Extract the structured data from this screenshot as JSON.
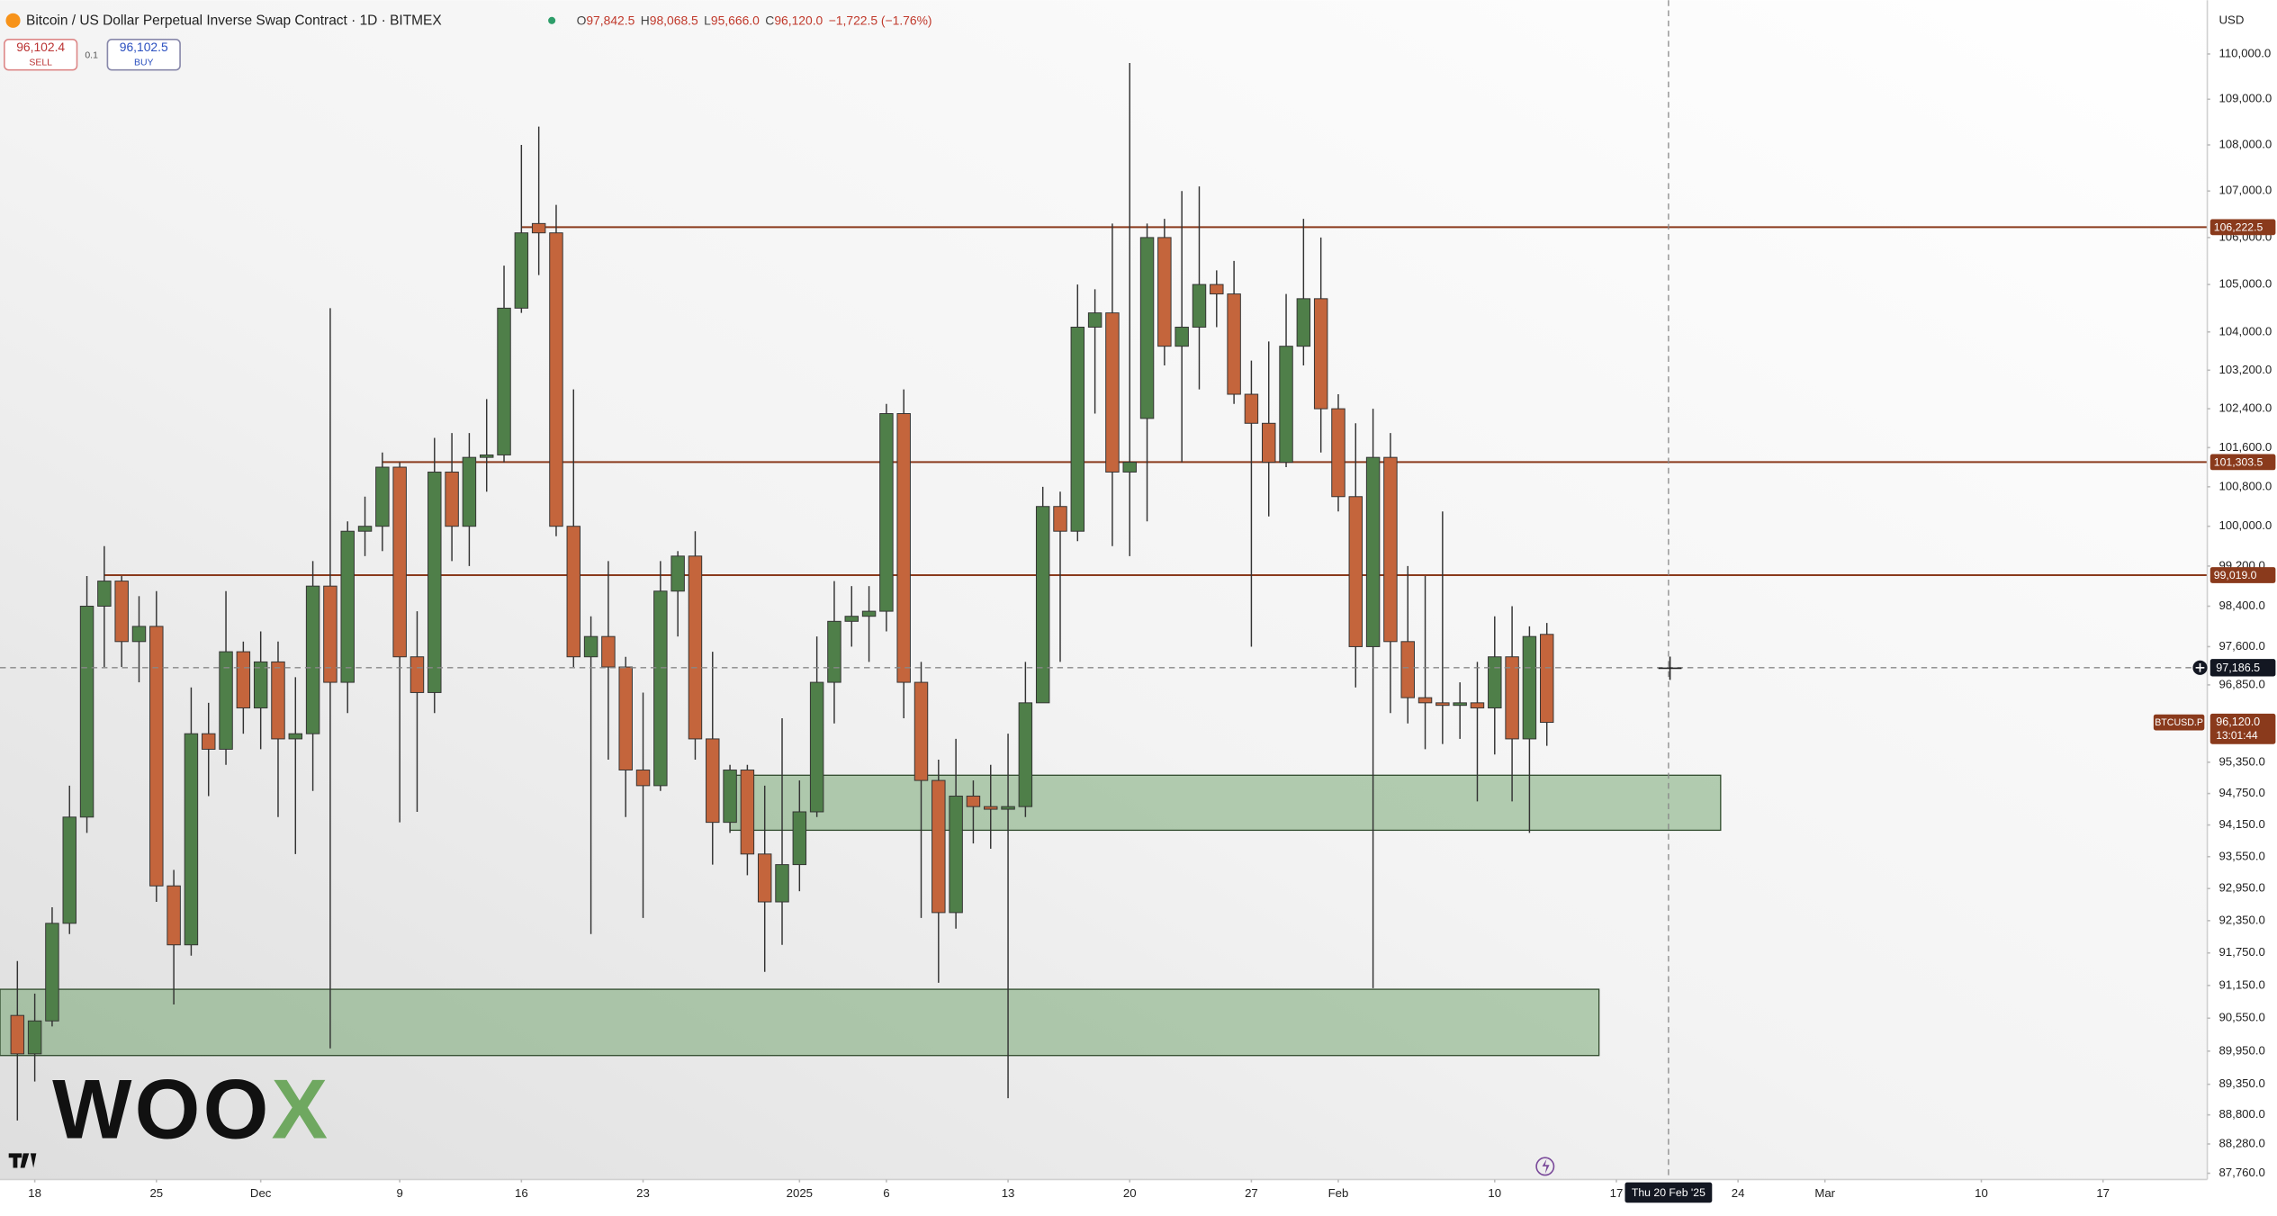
{
  "trade_panel": {
    "sell_price": "96,102.4",
    "sell_label": "SELL",
    "spread": "0.1",
    "buy_price": "96,102.5",
    "buy_label": "BUY"
  },
  "watermark": [
    "WOO",
    "X"
  ],
  "chart_data": {
    "type": "candlestick",
    "title": "Bitcoin / US Dollar Perpetual Inverse Swap Contract · 1D · BITMEX",
    "ohlc_legend": [
      "O",
      "97,842.5",
      "H",
      "98,068.5",
      "L",
      "95,666.0",
      "C",
      "96,120.0",
      "−1,722.5 (−1.76%)"
    ],
    "currency": "USD",
    "log_scale": true,
    "up_color": "#4f7f49",
    "down_color": "#c4653c",
    "wick_color": "#333333",
    "x": [
      "2024-11-17",
      "2024-11-18",
      "2024-11-19",
      "2024-11-20",
      "2024-11-21",
      "2024-11-22",
      "2024-11-23",
      "2024-11-24",
      "2024-11-25",
      "2024-11-26",
      "2024-11-27",
      "2024-11-28",
      "2024-11-29",
      "2024-11-30",
      "2024-12-01",
      "2024-12-02",
      "2024-12-03",
      "2024-12-04",
      "2024-12-05",
      "2024-12-06",
      "2024-12-07",
      "2024-12-08",
      "2024-12-09",
      "2024-12-10",
      "2024-12-11",
      "2024-12-12",
      "2024-12-13",
      "2024-12-14",
      "2024-12-15",
      "2024-12-16",
      "2024-12-17",
      "2024-12-18",
      "2024-12-19",
      "2024-12-20",
      "2024-12-21",
      "2024-12-22",
      "2024-12-23",
      "2024-12-24",
      "2024-12-25",
      "2024-12-26",
      "2024-12-27",
      "2024-12-28",
      "2024-12-29",
      "2024-12-30",
      "2024-12-31",
      "2025-01-01",
      "2025-01-02",
      "2025-01-03",
      "2025-01-04",
      "2025-01-05",
      "2025-01-06",
      "2025-01-07",
      "2025-01-08",
      "2025-01-09",
      "2025-01-10",
      "2025-01-11",
      "2025-01-12",
      "2025-01-13",
      "2025-01-14",
      "2025-01-15",
      "2025-01-16",
      "2025-01-17",
      "2025-01-18",
      "2025-01-19",
      "2025-01-20",
      "2025-01-21",
      "2025-01-22",
      "2025-01-23",
      "2025-01-24",
      "2025-01-25",
      "2025-01-26",
      "2025-01-27",
      "2025-01-28",
      "2025-01-29",
      "2025-01-30",
      "2025-01-31",
      "2025-02-01",
      "2025-02-02",
      "2025-02-03",
      "2025-02-04",
      "2025-02-05",
      "2025-02-06",
      "2025-02-07",
      "2025-02-08",
      "2025-02-09",
      "2025-02-10",
      "2025-02-11",
      "2025-02-12",
      "2025-02-13"
    ],
    "open": [
      90600,
      89900,
      90500,
      92300,
      94300,
      98400,
      98900,
      97700,
      98000,
      93000,
      91900,
      95900,
      95600,
      97500,
      96400,
      97300,
      95800,
      95900,
      98800,
      96900,
      99900,
      100000,
      101200,
      97400,
      96700,
      101100,
      100000,
      101400,
      101450,
      104500,
      106300,
      106100,
      100000,
      97400,
      97800,
      97200,
      95200,
      94900,
      98700,
      99400,
      95800,
      94200,
      95200,
      93600,
      92700,
      93400,
      94400,
      96900,
      98100,
      98200,
      98300,
      102300,
      96900,
      95000,
      92500,
      94700,
      94500,
      94450,
      94500,
      96500,
      100400,
      99900,
      104100,
      104400,
      101100,
      102200,
      106000,
      103700,
      104100,
      105000,
      104800,
      102700,
      102100,
      101300,
      103700,
      104700,
      102400,
      100600,
      97600,
      101400,
      97700,
      96600,
      96500,
      96450,
      96500,
      96400,
      97400,
      95800,
      97842.5
    ],
    "high": [
      91600,
      91000,
      92600,
      94900,
      99000,
      99600,
      99000,
      98600,
      98700,
      93300,
      96800,
      96500,
      98700,
      97700,
      97900,
      97700,
      97000,
      99300,
      104500,
      100100,
      100600,
      101500,
      101300,
      98300,
      101800,
      101900,
      101900,
      102600,
      105400,
      108000,
      108400,
      106700,
      102800,
      98200,
      99300,
      97400,
      96700,
      99300,
      99500,
      99900,
      97500,
      95300,
      95300,
      94900,
      96200,
      95000,
      97800,
      98900,
      98800,
      98800,
      102500,
      102800,
      97300,
      95400,
      95800,
      95000,
      95300,
      95900,
      97300,
      100800,
      100700,
      105000,
      104900,
      106300,
      109800,
      106300,
      106400,
      107000,
      107100,
      105300,
      105500,
      103400,
      103800,
      104800,
      106400,
      106000,
      102700,
      102100,
      102400,
      101900,
      99200,
      99000,
      100300,
      96900,
      97300,
      98200,
      98400,
      98000,
      98068.5
    ],
    "low": [
      88700,
      89400,
      90400,
      92100,
      94000,
      97200,
      97200,
      96900,
      92700,
      90800,
      91700,
      94700,
      95300,
      95900,
      95600,
      94300,
      93600,
      94800,
      90000,
      96300,
      99400,
      99500,
      94200,
      94400,
      96300,
      99300,
      99200,
      100700,
      101300,
      104400,
      105200,
      99800,
      97200,
      92100,
      95400,
      94300,
      92400,
      94800,
      97800,
      95400,
      93400,
      94000,
      93200,
      91400,
      91900,
      92900,
      94300,
      96100,
      97600,
      97300,
      97900,
      96200,
      92400,
      91200,
      92200,
      93800,
      93700,
      89100,
      94300,
      96500,
      97300,
      99700,
      102300,
      99600,
      99400,
      100100,
      103300,
      101300,
      102800,
      104100,
      102500,
      97600,
      100200,
      101200,
      103300,
      101500,
      100300,
      96800,
      91100,
      96300,
      96100,
      95600,
      95700,
      95800,
      94600,
      95500,
      94600,
      94000,
      95666
    ],
    "close": [
      89900,
      90500,
      92300,
      94300,
      98400,
      98900,
      97700,
      98000,
      93000,
      91900,
      95900,
      95600,
      97500,
      96400,
      97300,
      95800,
      95900,
      98800,
      96900,
      99900,
      100000,
      101200,
      97400,
      96700,
      101100,
      100000,
      101400,
      101450,
      104500,
      106100,
      106100,
      100000,
      97400,
      97800,
      97200,
      95200,
      94900,
      98700,
      99400,
      95800,
      94200,
      95200,
      93600,
      92700,
      93400,
      94400,
      96900,
      98100,
      98200,
      98300,
      102300,
      96900,
      95000,
      92500,
      94700,
      94500,
      94450,
      94500,
      96500,
      100400,
      99900,
      104100,
      104400,
      101100,
      101300,
      106000,
      103700,
      104100,
      105000,
      104800,
      102700,
      102100,
      101300,
      103700,
      104700,
      102400,
      100600,
      97600,
      101400,
      97700,
      96600,
      96500,
      96450,
      96500,
      96400,
      97400,
      95800,
      97800,
      96120
    ],
    "xlim": [
      "2024-11-16",
      "2025-03-23"
    ],
    "xticks": [
      {
        "value": "2024-11-18",
        "label": "18"
      },
      {
        "value": "2024-11-25",
        "label": "25"
      },
      {
        "value": "2024-12-01",
        "label": "Dec"
      },
      {
        "value": "2024-12-09",
        "label": "9"
      },
      {
        "value": "2024-12-16",
        "label": "16"
      },
      {
        "value": "2024-12-23",
        "label": "23"
      },
      {
        "value": "2025-01-01",
        "label": "2025"
      },
      {
        "value": "2025-01-06",
        "label": "6"
      },
      {
        "value": "2025-01-13",
        "label": "13"
      },
      {
        "value": "2025-01-20",
        "label": "20"
      },
      {
        "value": "2025-01-27",
        "label": "27"
      },
      {
        "value": "2025-02-01",
        "label": "Feb"
      },
      {
        "value": "2025-02-10",
        "label": "10"
      },
      {
        "value": "2025-02-17",
        "label": "17"
      },
      {
        "value": "2025-02-24",
        "label": "24"
      },
      {
        "value": "2025-03-01",
        "label": "Mar"
      },
      {
        "value": "2025-03-10",
        "label": "10"
      },
      {
        "value": "2025-03-17",
        "label": "17"
      }
    ],
    "ylim": [
      87650,
      111200
    ],
    "yticks": [
      {
        "value": 110000,
        "label": "110,000.0"
      },
      {
        "value": 109000,
        "label": "109,000.0"
      },
      {
        "value": 108000,
        "label": "108,000.0"
      },
      {
        "value": 107000,
        "label": "107,000.0"
      },
      {
        "value": 106000,
        "label": "106,000.0"
      },
      {
        "value": 105000,
        "label": "105,000.0"
      },
      {
        "value": 104000,
        "label": "104,000.0"
      },
      {
        "value": 103200,
        "label": "103,200.0"
      },
      {
        "value": 102400,
        "label": "102,400.0"
      },
      {
        "value": 101600,
        "label": "101,600.0"
      },
      {
        "value": 100800,
        "label": "100,800.0"
      },
      {
        "value": 100000,
        "label": "100,000.0"
      },
      {
        "value": 99200,
        "label": "99,200.0"
      },
      {
        "value": 98400,
        "label": "98,400.0"
      },
      {
        "value": 97600,
        "label": "97,600.0"
      },
      {
        "value": 96850,
        "label": "96,850.0"
      },
      {
        "value": 95350,
        "label": "95,350.0"
      },
      {
        "value": 94750,
        "label": "94,750.0"
      },
      {
        "value": 94150,
        "label": "94,150.0"
      },
      {
        "value": 93550,
        "label": "93,550.0"
      },
      {
        "value": 92950,
        "label": "92,950.0"
      },
      {
        "value": 92350,
        "label": "92,350.0"
      },
      {
        "value": 91750,
        "label": "91,750.0"
      },
      {
        "value": 91150,
        "label": "91,150.0"
      },
      {
        "value": 90550,
        "label": "90,550.0"
      },
      {
        "value": 89950,
        "label": "89,950.0"
      },
      {
        "value": 89350,
        "label": "89,350.0"
      },
      {
        "value": 88800,
        "label": "88,800.0"
      },
      {
        "value": 88280,
        "label": "88,280.0"
      },
      {
        "value": 87760,
        "label": "87,760.0"
      }
    ],
    "levels": [
      {
        "value": 106222.5,
        "label": "106,222.5",
        "start": "2024-12-16"
      },
      {
        "value": 101303.5,
        "label": "101,303.5",
        "start": "2024-12-08"
      },
      {
        "value": 99019.0,
        "label": "99,019.0",
        "start": "2024-11-22"
      }
    ],
    "level_color": "#8a3a1c",
    "zones": [
      {
        "top": 95100,
        "bottom": 94050,
        "start": "2024-12-28",
        "end": "2025-02-23"
      },
      {
        "top": 91080,
        "bottom": 89870,
        "start": "2024-11-16",
        "end": "2025-02-16"
      }
    ],
    "zone_color": "#5f9a5a",
    "crosshair": {
      "price": 97186.5,
      "price_label": "97,186.5",
      "date": "2025-02-20",
      "date_label": "Thu 20 Feb '25"
    },
    "last_price": {
      "symbol": "BTCUSD.P",
      "value": 96120.0,
      "label": "96,120.0",
      "countdown": "13:01:44"
    }
  }
}
